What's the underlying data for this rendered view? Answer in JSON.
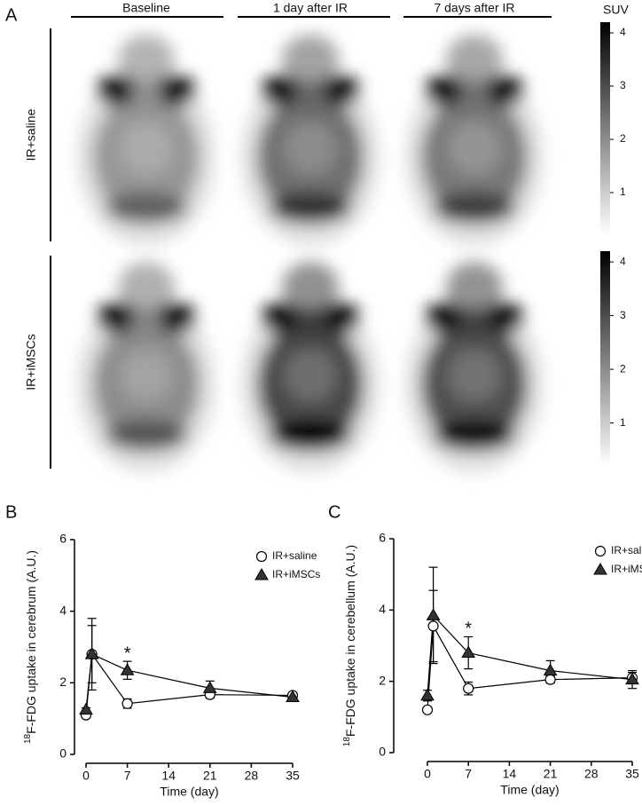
{
  "panel_a": {
    "letter": "A",
    "columns": [
      "Baseline",
      "1 day after IR",
      "7 days after IR"
    ],
    "rows": [
      "IR+saline",
      "IR+iMSCs"
    ],
    "colorbar": {
      "label": "SUV",
      "lim": [
        0.2,
        4.2
      ],
      "ticks": [
        1,
        2,
        3,
        4
      ]
    }
  },
  "chart_data": [
    {
      "type": "line",
      "panel": "B",
      "ylabel_sup": "18",
      "ylabel": "F-FDG uptake in cerebrum (A.U.)",
      "xlabel": "Time (day)",
      "x": [
        0,
        1,
        7,
        21,
        35
      ],
      "xlim": [
        0,
        35
      ],
      "xticks": [
        0,
        7,
        14,
        21,
        28,
        35
      ],
      "ylim": [
        0,
        6
      ],
      "yticks": [
        0,
        2,
        4,
        6
      ],
      "annotation": "*",
      "annotation_x": 7,
      "legend": "upper right",
      "series": [
        {
          "name": "IR+saline",
          "color": "#ffffff",
          "marker": "circle",
          "values": [
            1.1,
            2.8,
            1.42,
            1.67,
            1.65
          ],
          "errors": [
            0.05,
            0.8,
            0.13,
            0.1,
            0.05
          ]
        },
        {
          "name": "IR+iMSCs",
          "color": "#333333",
          "marker": "triangle",
          "values": [
            1.25,
            2.8,
            2.35,
            1.85,
            1.6
          ],
          "errors": [
            0.05,
            1.0,
            0.25,
            0.2,
            0.05
          ]
        }
      ]
    },
    {
      "type": "line",
      "panel": "C",
      "ylabel_sup": "18",
      "ylabel": "F-FDG uptake in cerebellum (A.U.)",
      "xlabel": "Time (day)",
      "x": [
        0,
        1,
        7,
        21,
        35
      ],
      "xlim": [
        0,
        35
      ],
      "xticks": [
        0,
        7,
        14,
        21,
        28,
        35
      ],
      "ylim": [
        0,
        6
      ],
      "yticks": [
        0,
        2,
        4,
        6
      ],
      "annotation": "*",
      "annotation_x": 7,
      "legend": "upper right",
      "series": [
        {
          "name": "IR+saline",
          "color": "#ffffff",
          "marker": "circle",
          "values": [
            1.2,
            3.55,
            1.8,
            2.05,
            2.1
          ],
          "errors": [
            0.05,
            1.0,
            0.18,
            0.1,
            0.15
          ]
        },
        {
          "name": "IR+iMSCs",
          "color": "#333333",
          "marker": "triangle",
          "values": [
            1.6,
            3.85,
            2.8,
            2.3,
            2.05
          ],
          "errors": [
            0.15,
            1.35,
            0.45,
            0.28,
            0.25
          ]
        }
      ]
    }
  ]
}
